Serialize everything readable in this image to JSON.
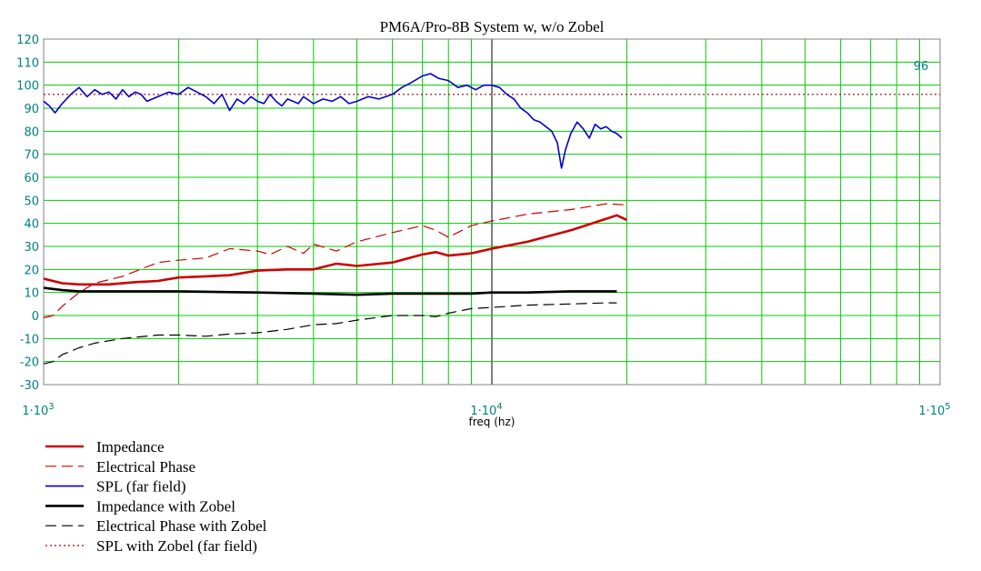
{
  "chart_data": {
    "type": "line",
    "title": "PM6A/Pro-8B System w, w/o Zobel",
    "xlabel": "freq  (hz)",
    "ylabel": "",
    "xscale": "log",
    "xlim": [
      1000,
      100000
    ],
    "ylim": [
      -30,
      120
    ],
    "x_tick_labels": [
      "1·10",
      "1·10",
      "1·10"
    ],
    "x_tick_exponents": [
      "3",
      "4",
      "5"
    ],
    "y_ticks": [
      -30,
      -20,
      -10,
      0,
      10,
      20,
      30,
      40,
      50,
      60,
      70,
      80,
      90,
      100,
      110,
      120
    ],
    "y_tick_labels": [
      "-30",
      "-20",
      "-10",
      "0",
      "10",
      "20",
      "30",
      "40",
      "50",
      "60",
      "70",
      "80",
      "90",
      "100",
      "110",
      "120"
    ],
    "grid": true,
    "reference_label": "96",
    "legend_position": "bottom-left",
    "series": [
      {
        "name": "Impedance",
        "color": "#cc0000",
        "style": "solid-thick",
        "x": [
          1000,
          1100,
          1200,
          1400,
          1600,
          1800,
          2000,
          2300,
          2600,
          3000,
          3500,
          4000,
          4500,
          5000,
          6000,
          7000,
          7500,
          8000,
          9000,
          10000,
          12000,
          15000,
          18000,
          19000,
          20000
        ],
        "y": [
          16,
          14,
          13.5,
          13.5,
          14.5,
          15,
          16.5,
          17,
          17.5,
          19.5,
          20,
          20,
          22.5,
          21.5,
          23,
          26.5,
          27.5,
          26,
          27,
          29,
          32,
          37,
          42,
          43.5,
          41.5
        ]
      },
      {
        "name": "Electrical Phase",
        "color": "#cc0000",
        "style": "long-dash",
        "x": [
          1000,
          1050,
          1100,
          1200,
          1300,
          1500,
          1800,
          2000,
          2300,
          2600,
          3000,
          3200,
          3500,
          3800,
          4000,
          4500,
          5000,
          6000,
          7000,
          7500,
          8000,
          9000,
          10000,
          12000,
          15000,
          18000,
          20000
        ],
        "y": [
          -1,
          0,
          4,
          10,
          14,
          17,
          23,
          24,
          25,
          29,
          28,
          26.5,
          30,
          27,
          31,
          28,
          32,
          36,
          39,
          37,
          34,
          39,
          41,
          44,
          46,
          48.5,
          48
        ]
      },
      {
        "name": "SPL  (far field)",
        "color": "#0000cc",
        "style": "solid",
        "x": [
          1000,
          1030,
          1060,
          1100,
          1150,
          1200,
          1250,
          1300,
          1350,
          1400,
          1450,
          1500,
          1550,
          1600,
          1650,
          1700,
          1800,
          1900,
          2000,
          2100,
          2200,
          2300,
          2400,
          2500,
          2600,
          2700,
          2800,
          2900,
          3000,
          3100,
          3200,
          3300,
          3400,
          3500,
          3600,
          3700,
          3800,
          4000,
          4200,
          4400,
          4600,
          4800,
          5000,
          5300,
          5600,
          6000,
          6300,
          6600,
          7000,
          7300,
          7600,
          8000,
          8400,
          8800,
          9200,
          9600,
          10000,
          10400,
          10800,
          11200,
          11600,
          12000,
          12400,
          12800,
          13200,
          13600,
          14000,
          14300,
          14600,
          15000,
          15500,
          16000,
          16500,
          17000,
          17500,
          18000,
          18500,
          19000,
          19500
        ],
        "y": [
          93,
          91,
          88,
          92,
          96,
          99,
          95,
          98,
          96,
          97,
          94,
          98,
          95,
          97,
          96,
          93,
          95,
          97,
          96,
          99,
          97,
          95,
          92,
          96,
          89,
          94,
          92,
          95,
          93,
          92,
          96,
          93,
          91,
          94,
          93,
          92,
          95,
          92,
          94,
          93,
          95,
          92,
          93,
          95,
          94,
          96,
          99,
          101,
          104,
          105,
          103,
          102,
          99,
          100,
          98,
          100,
          100,
          99,
          96,
          94,
          90,
          88,
          85,
          84,
          82,
          80,
          75,
          64,
          72,
          79,
          84,
          81,
          77,
          83,
          81,
          82,
          80,
          79,
          77
        ]
      },
      {
        "name": "Impedance with Zobel",
        "color": "#000000",
        "style": "solid-thick",
        "x": [
          1000,
          1100,
          1200,
          1500,
          2000,
          3000,
          4000,
          5000,
          6000,
          7000,
          8000,
          9000,
          10000,
          12000,
          15000,
          18000,
          19000
        ],
        "y": [
          12,
          11,
          10.5,
          10.5,
          10.5,
          10,
          9.5,
          9,
          9.5,
          9.5,
          9.5,
          9.5,
          10,
          10,
          10.5,
          10.5,
          10.5
        ]
      },
      {
        "name": "Electrical Phase with Zobel",
        "color": "#000000",
        "style": "long-dash",
        "x": [
          1000,
          1050,
          1100,
          1200,
          1300,
          1500,
          1800,
          2000,
          2300,
          2600,
          3000,
          3500,
          4000,
          4500,
          5000,
          6000,
          7000,
          7500,
          8000,
          9000,
          10000,
          12000,
          15000,
          18000,
          19000
        ],
        "y": [
          -21,
          -20,
          -17,
          -14,
          -12,
          -10,
          -8.5,
          -8.5,
          -9,
          -8,
          -7.5,
          -6,
          -4,
          -3.5,
          -2,
          0,
          0,
          -0.5,
          1,
          3,
          3.5,
          4.5,
          5,
          5.5,
          5.5
        ]
      },
      {
        "name": "SPL with Zobel  (far field)",
        "color": "#990000",
        "style": "dotted",
        "x": [
          1000,
          100000
        ],
        "y": [
          96,
          96
        ]
      }
    ]
  }
}
